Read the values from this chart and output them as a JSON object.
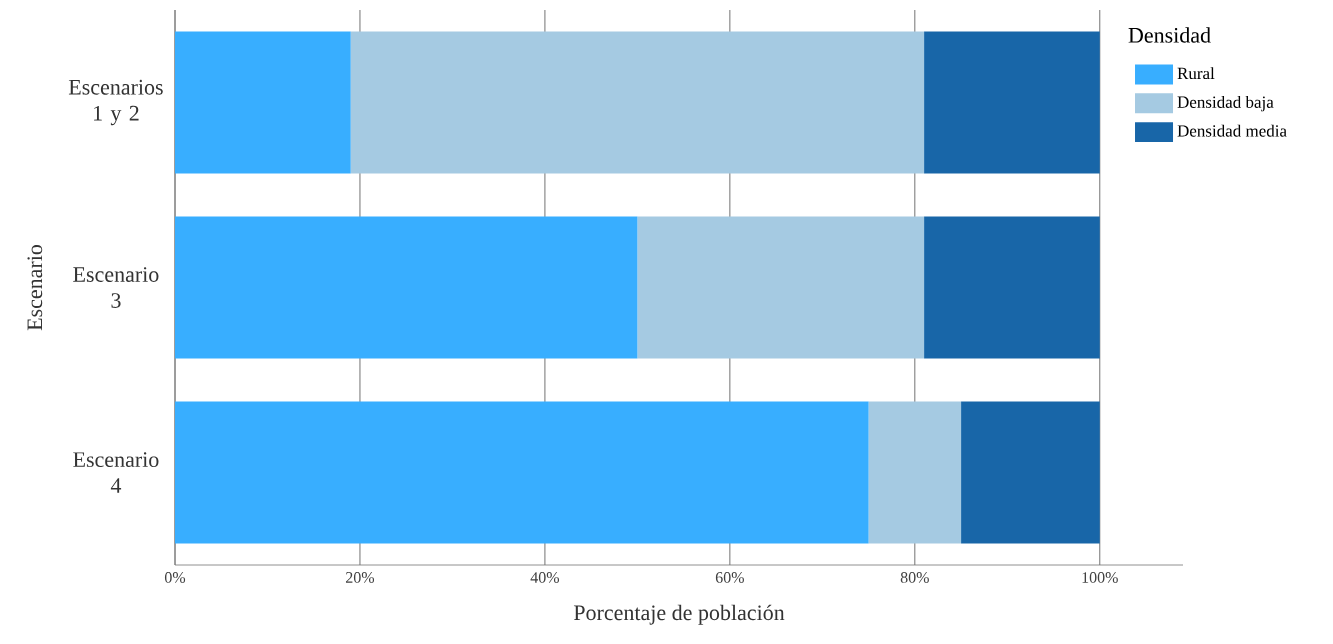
{
  "chart_data": {
    "type": "bar",
    "orientation": "horizontal",
    "stacked": true,
    "xlabel": "Porcentaje de población",
    "ylabel": "Escenario",
    "legend_title": "Densidad",
    "legend": "right",
    "grid": "x",
    "categories": [
      "Escenarios 1 y 2",
      "Escenario 3",
      "Escenario 4"
    ],
    "series": [
      {
        "name": "Rural",
        "color": "#38aeff",
        "values": [
          19,
          50,
          75
        ]
      },
      {
        "name": "Densidad baja",
        "color": "#a5cae2",
        "values": [
          62,
          31,
          10
        ]
      },
      {
        "name": "Densidad media",
        "color": "#1866a8",
        "values": [
          19,
          19,
          15
        ]
      }
    ],
    "xlim": [
      0,
      109
    ],
    "xticks": [
      {
        "value": 0,
        "label": "0%"
      },
      {
        "value": 20,
        "label": "20%"
      },
      {
        "value": 40,
        "label": "40%"
      },
      {
        "value": 60,
        "label": "60%"
      },
      {
        "value": 80,
        "label": "80%"
      },
      {
        "value": 100,
        "label": "100%"
      }
    ]
  }
}
